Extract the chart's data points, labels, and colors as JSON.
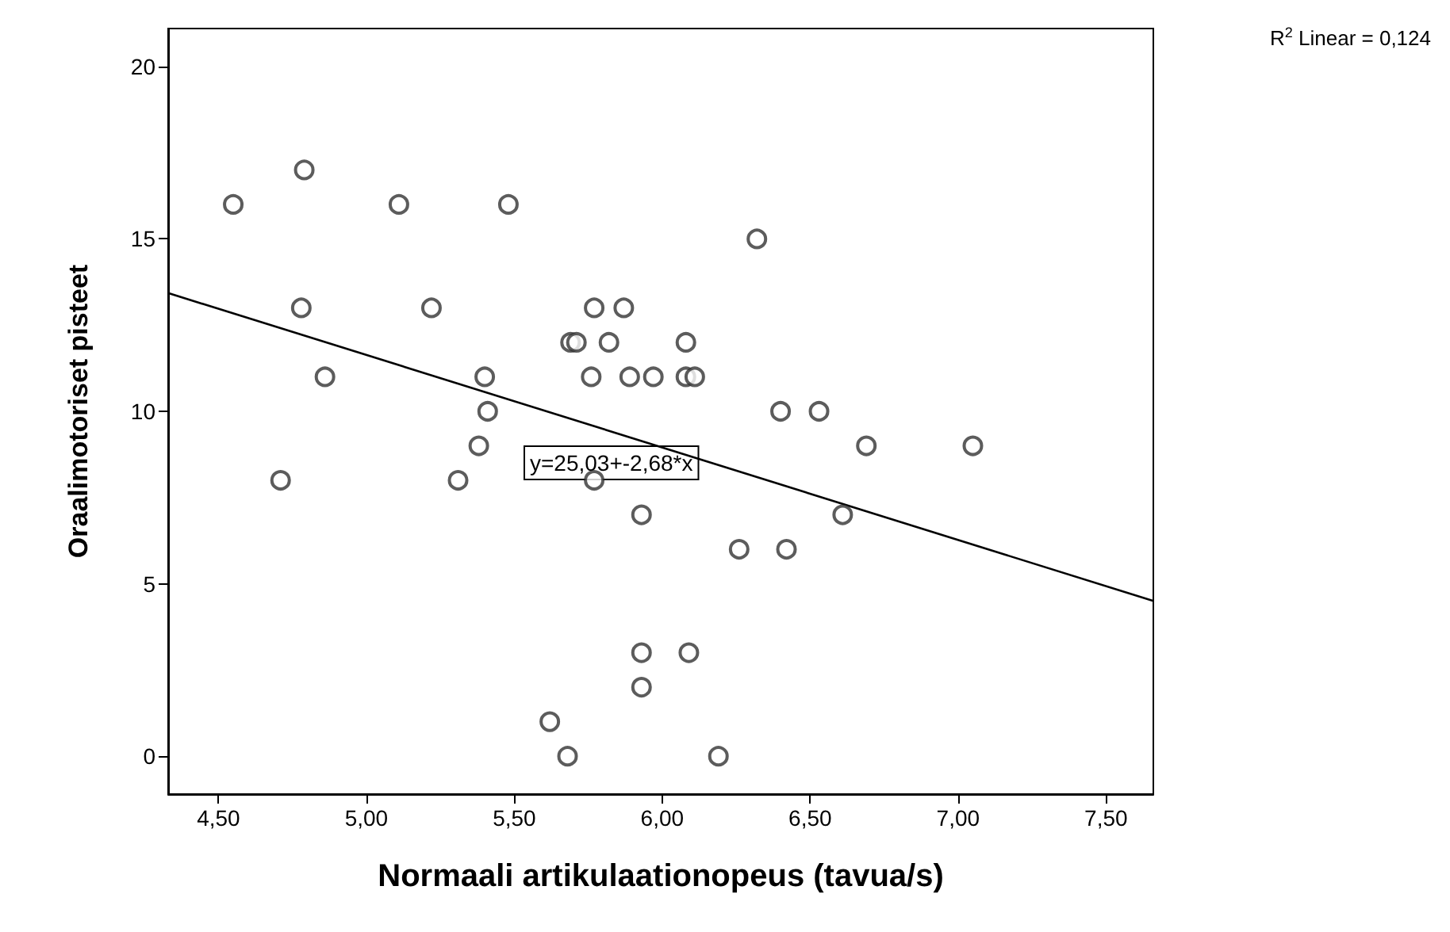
{
  "chart_data": {
    "type": "scatter",
    "xlabel": "Normaali artikulaationopeus (tavua/s)",
    "ylabel": "Oraalimotoriset pisteet",
    "xlim": [
      4.33,
      7.66
    ],
    "ylim": [
      -1.1,
      21.1
    ],
    "xticks": [
      {
        "value": 4.5,
        "label": "4,50"
      },
      {
        "value": 5,
        "label": "5,00"
      },
      {
        "value": 5.5,
        "label": "5,50"
      },
      {
        "value": 6,
        "label": "6,00"
      },
      {
        "value": 6.5,
        "label": "6,50"
      },
      {
        "value": 7,
        "label": "7,00"
      },
      {
        "value": 7.5,
        "label": "7,50"
      }
    ],
    "yticks": [
      0,
      5,
      10,
      15,
      20
    ],
    "grid": false,
    "marker": "circle",
    "series": [
      {
        "color": "#333333",
        "x": [
          4.55,
          5.11,
          5.48,
          4.79,
          4.78,
          5.22,
          5.77,
          5.87,
          5.69,
          5.71,
          5.82,
          6.08,
          4.86,
          5.4,
          5.76,
          5.89,
          5.97,
          6.08,
          6.11,
          5.41,
          6.4,
          6.53,
          5.38,
          6.69,
          7.05,
          4.71,
          5.31,
          5.77,
          5.93,
          6.61,
          6.26,
          6.42,
          5.93,
          6.09,
          5.93,
          5.62,
          5.68,
          6.19,
          6.32
        ],
        "values": [
          16,
          16,
          16,
          17,
          13,
          13,
          13,
          13,
          12,
          12,
          12,
          12,
          11,
          11,
          11,
          11,
          11,
          11,
          11,
          10,
          10,
          10,
          9,
          9,
          9,
          8,
          8,
          8,
          7,
          7,
          6,
          6,
          3,
          3,
          2,
          1,
          0,
          0,
          15
        ]
      },
      {
        "type": "line",
        "color": "#000000",
        "marker": "none",
        "x": [
          4.33,
          7.66
        ],
        "values": [
          13.43,
          4.5
        ]
      }
    ],
    "annotations": [
      "y=25,03+-2,68*x",
      "R$^{2}$ Linear = 0,124"
    ]
  }
}
